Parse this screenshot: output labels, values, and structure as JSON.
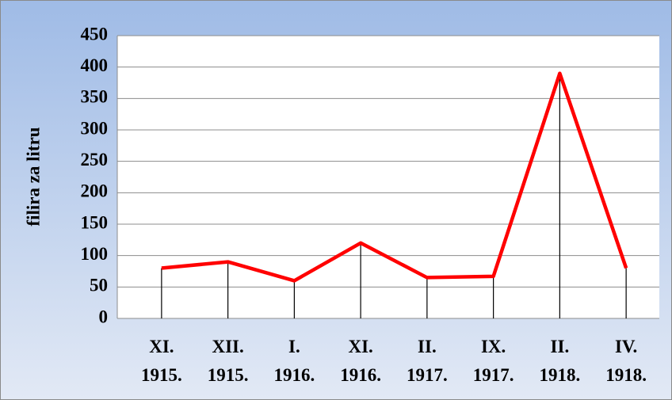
{
  "chart_data": {
    "type": "line",
    "y_label": "filira za litru",
    "categories": [
      "XI.\n1915.",
      "XII.\n1915.",
      "I.\n1916.",
      "XI.\n1916.",
      "II.\n1917.",
      "IX.\n1917.",
      "II.\n1918.",
      "IV.\n1918."
    ],
    "values": [
      80,
      90,
      60,
      120,
      65,
      67,
      390,
      80
    ],
    "color": "#ff0000",
    "ylim": [
      0,
      450
    ],
    "yticks": [
      0,
      50,
      100,
      150,
      200,
      250,
      300,
      350,
      400,
      450
    ],
    "grid": true,
    "drop_lines": true
  }
}
